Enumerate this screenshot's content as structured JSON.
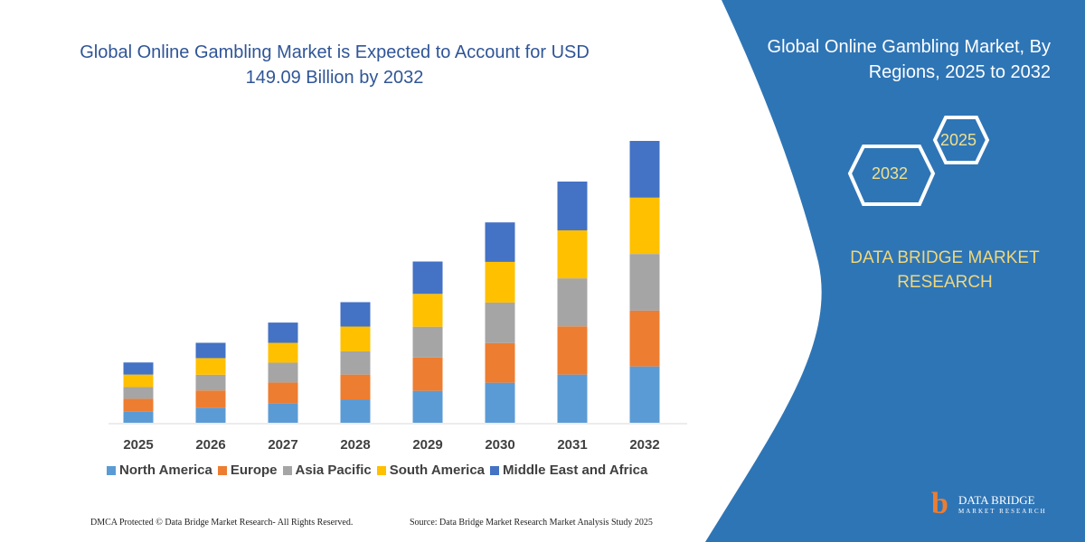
{
  "header": {
    "title": "Global Online Gambling Market is Expected to Account for USD 149.09 Billion by 2032"
  },
  "panel": {
    "title": "Global Online Gambling Market, By Regions, 2025 to 2032",
    "hex_right": "2025",
    "hex_left": "2032",
    "brand": "DATA BRIDGE MARKET RESEARCH",
    "logo_text": "DATA BRIDGE",
    "logo_sub": "MARKET RESEARCH",
    "bg_color": "#2e75b6"
  },
  "footer": {
    "copyright": "DMCA Protected © Data Bridge Market Research- All Rights Reserved.",
    "source": "Source: Data Bridge Market Research  Market Analysis Study 2025"
  },
  "chart_data": {
    "type": "bar",
    "stacked": true,
    "unit": "USD Billion (estimated from bar heights)",
    "categories": [
      "2025",
      "2026",
      "2027",
      "2028",
      "2029",
      "2030",
      "2031",
      "2032"
    ],
    "series": [
      {
        "name": "North America",
        "color": "#5b9bd5",
        "values": [
          5.9,
          8.0,
          10.4,
          12.4,
          16.9,
          21.2,
          25.5,
          29.8
        ]
      },
      {
        "name": "Europe",
        "color": "#ed7d31",
        "values": [
          6.8,
          9.1,
          10.9,
          13.1,
          17.6,
          21.0,
          25.5,
          29.5
        ]
      },
      {
        "name": "Asia Pacific",
        "color": "#a5a5a5",
        "values": [
          6.2,
          8.3,
          10.5,
          12.3,
          16.3,
          21.4,
          25.4,
          30.0
        ]
      },
      {
        "name": "South America",
        "color": "#ffc000",
        "values": [
          6.6,
          8.8,
          10.5,
          13.1,
          17.4,
          21.5,
          25.4,
          29.8
        ]
      },
      {
        "name": "Middle East and Africa",
        "color": "#4472c4",
        "values": [
          6.4,
          8.1,
          10.7,
          12.9,
          17.1,
          20.9,
          25.8,
          30.0
        ]
      }
    ],
    "legend": "bottom",
    "grid": false,
    "y_axis_shown": false
  }
}
